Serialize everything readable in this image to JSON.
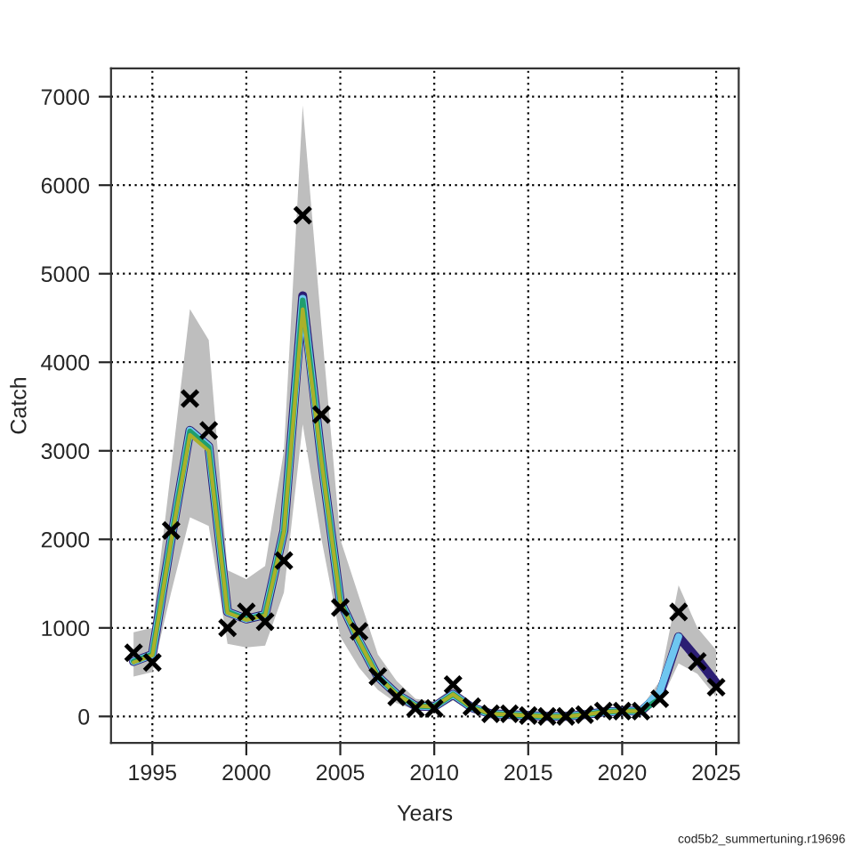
{
  "chart_data": {
    "type": "line",
    "xlabel": "Years",
    "ylabel": "Catch",
    "x": [
      1994,
      1995,
      1996,
      1997,
      1998,
      1999,
      2000,
      2001,
      2002,
      2003,
      2004,
      2005,
      2006,
      2007,
      2008,
      2009,
      2010,
      2011,
      2012,
      2013,
      2014,
      2015,
      2016,
      2017,
      2018,
      2019,
      2020,
      2021,
      2022,
      2023,
      2024,
      2025
    ],
    "xlim": [
      1992.8,
      2026.2
    ],
    "xticks": [
      1995,
      2000,
      2005,
      2010,
      2015,
      2020,
      2025
    ],
    "ylim": [
      -300,
      7320
    ],
    "yticks": [
      0,
      1000,
      2000,
      3000,
      4000,
      5000,
      6000,
      7000
    ],
    "grid": true,
    "legend": false,
    "line_style": "solid",
    "marker": "none",
    "series": [
      {
        "color": "#2b1d73",
        "values": [
          620,
          700,
          2000,
          3230,
          3050,
          1180,
          1100,
          1150,
          2100,
          4750,
          2900,
          1300,
          850,
          450,
          250,
          120,
          110,
          250,
          100,
          30,
          20,
          10,
          0,
          0,
          20,
          50,
          60,
          60,
          250,
          900,
          650,
          380
        ],
        "lower": [
          450,
          500,
          1400,
          2250,
          2150,
          820,
          780,
          800,
          1400,
          3300,
          2000,
          900,
          550,
          300,
          150,
          70,
          60,
          180,
          60,
          15,
          10,
          5,
          0,
          0,
          5,
          30,
          40,
          40,
          150,
          600,
          480,
          220
        ],
        "upper": [
          950,
          1000,
          2800,
          4600,
          4250,
          1650,
          1550,
          1700,
          3000,
          6900,
          4400,
          2000,
          1350,
          700,
          400,
          200,
          170,
          330,
          150,
          50,
          40,
          25,
          15,
          15,
          30,
          80,
          90,
          100,
          400,
          1480,
          1000,
          750
        ]
      },
      {
        "color": "#6ec6f0",
        "values": [
          620,
          700,
          2000,
          3230,
          3050,
          1180,
          1100,
          1150,
          2100,
          4720,
          2900,
          1300,
          850,
          450,
          250,
          120,
          110,
          250,
          100,
          30,
          20,
          10,
          0,
          0,
          20,
          50,
          60,
          60,
          280,
          900,
          null,
          null
        ]
      },
      {
        "color": "#1f9e6e",
        "values": [
          620,
          700,
          2000,
          3220,
          3040,
          1180,
          1100,
          1150,
          2100,
          4700,
          2900,
          1300,
          850,
          450,
          250,
          120,
          110,
          250,
          100,
          30,
          20,
          10,
          0,
          0,
          20,
          50,
          60,
          60,
          200,
          null,
          null,
          null
        ]
      },
      {
        "color": "#aab02a",
        "values": [
          610,
          690,
          1980,
          3180,
          3000,
          1170,
          1090,
          1140,
          2080,
          4600,
          2880,
          1290,
          850,
          450,
          250,
          120,
          110,
          250,
          100,
          30,
          20,
          10,
          0,
          0,
          20,
          50,
          60,
          60,
          null,
          null,
          null,
          null
        ]
      },
      {
        "type": "scatter",
        "marker": "cross",
        "color": "#000000",
        "values": [
          720,
          610,
          2100,
          3590,
          3230,
          1000,
          1180,
          1070,
          1760,
          5660,
          3410,
          1230,
          960,
          450,
          220,
          90,
          90,
          360,
          110,
          30,
          30,
          10,
          0,
          0,
          20,
          60,
          60,
          60,
          200,
          1180,
          620,
          330
        ]
      }
    ],
    "annotations": [
      "cod5b2_summertuning.r19696"
    ]
  }
}
